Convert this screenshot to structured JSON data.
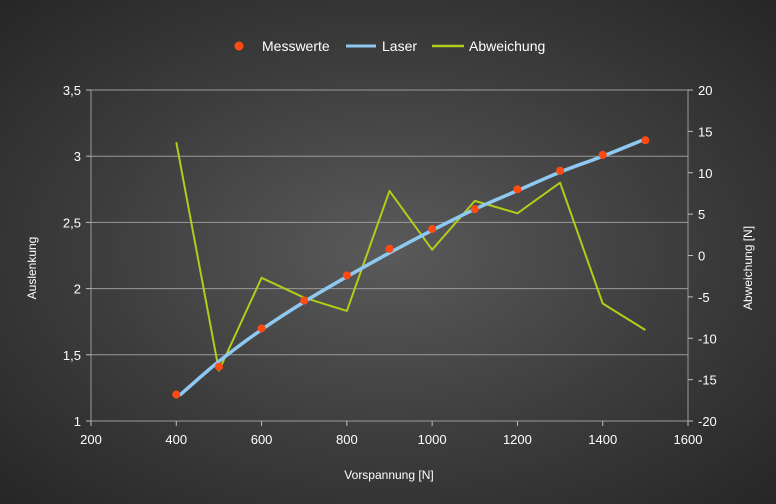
{
  "chart_data": {
    "type": "line",
    "xlabel": "Vorspannung [N]",
    "ylabel": "Auslenkung",
    "y2label": "Abweichung [N]",
    "xlim": [
      200,
      1600
    ],
    "ylim": [
      1,
      3.5
    ],
    "y2lim": [
      -20,
      20
    ],
    "x_ticks": [
      200,
      400,
      600,
      800,
      1000,
      1200,
      1400,
      1600
    ],
    "x_tick_labels": [
      "200",
      "400",
      "600",
      "800",
      "1000",
      "1200",
      "1400",
      "1600"
    ],
    "y_ticks": [
      1,
      1.5,
      2,
      2.5,
      3,
      3.5
    ],
    "y_tick_labels": [
      "1",
      "1,5",
      "2",
      "2,5",
      "3",
      "3,5"
    ],
    "y2_ticks": [
      -20,
      -15,
      -10,
      -5,
      0,
      5,
      10,
      15,
      20
    ],
    "y2_tick_labels": [
      "-20",
      "-15",
      "-10",
      "-5",
      "0",
      "5",
      "10",
      "15",
      "20"
    ],
    "grid": "horizontal",
    "legend_position": "top",
    "series": [
      {
        "name": "Messwerte",
        "kind": "scatter",
        "axis": "left",
        "color": "#ff4a12",
        "x": [
          400,
          500,
          600,
          700,
          800,
          900,
          1000,
          1100,
          1200,
          1300,
          1400,
          1500
        ],
        "y": [
          1.2,
          1.41,
          1.7,
          1.91,
          2.1,
          2.3,
          2.45,
          2.6,
          2.75,
          2.89,
          3.01,
          3.12
        ]
      },
      {
        "name": "Laser",
        "kind": "line",
        "axis": "left",
        "color": "#8fc8f0",
        "x": [
          410,
          500,
          600,
          700,
          800,
          900,
          1000,
          1100,
          1200,
          1300,
          1400,
          1500
        ],
        "y": [
          1.2,
          1.45,
          1.69,
          1.9,
          2.09,
          2.27,
          2.44,
          2.6,
          2.74,
          2.88,
          3.0,
          3.13
        ]
      },
      {
        "name": "Abweichung",
        "kind": "line",
        "axis": "right",
        "color": "#b3cc1a",
        "x": [
          400,
          500,
          600,
          700,
          800,
          900,
          1000,
          1100,
          1200,
          1300,
          1400,
          1500
        ],
        "y": [
          13.7,
          -13.9,
          -2.7,
          -5.1,
          -6.7,
          7.8,
          0.7,
          6.6,
          5.1,
          8.8,
          -5.8,
          -9.0
        ]
      }
    ]
  }
}
